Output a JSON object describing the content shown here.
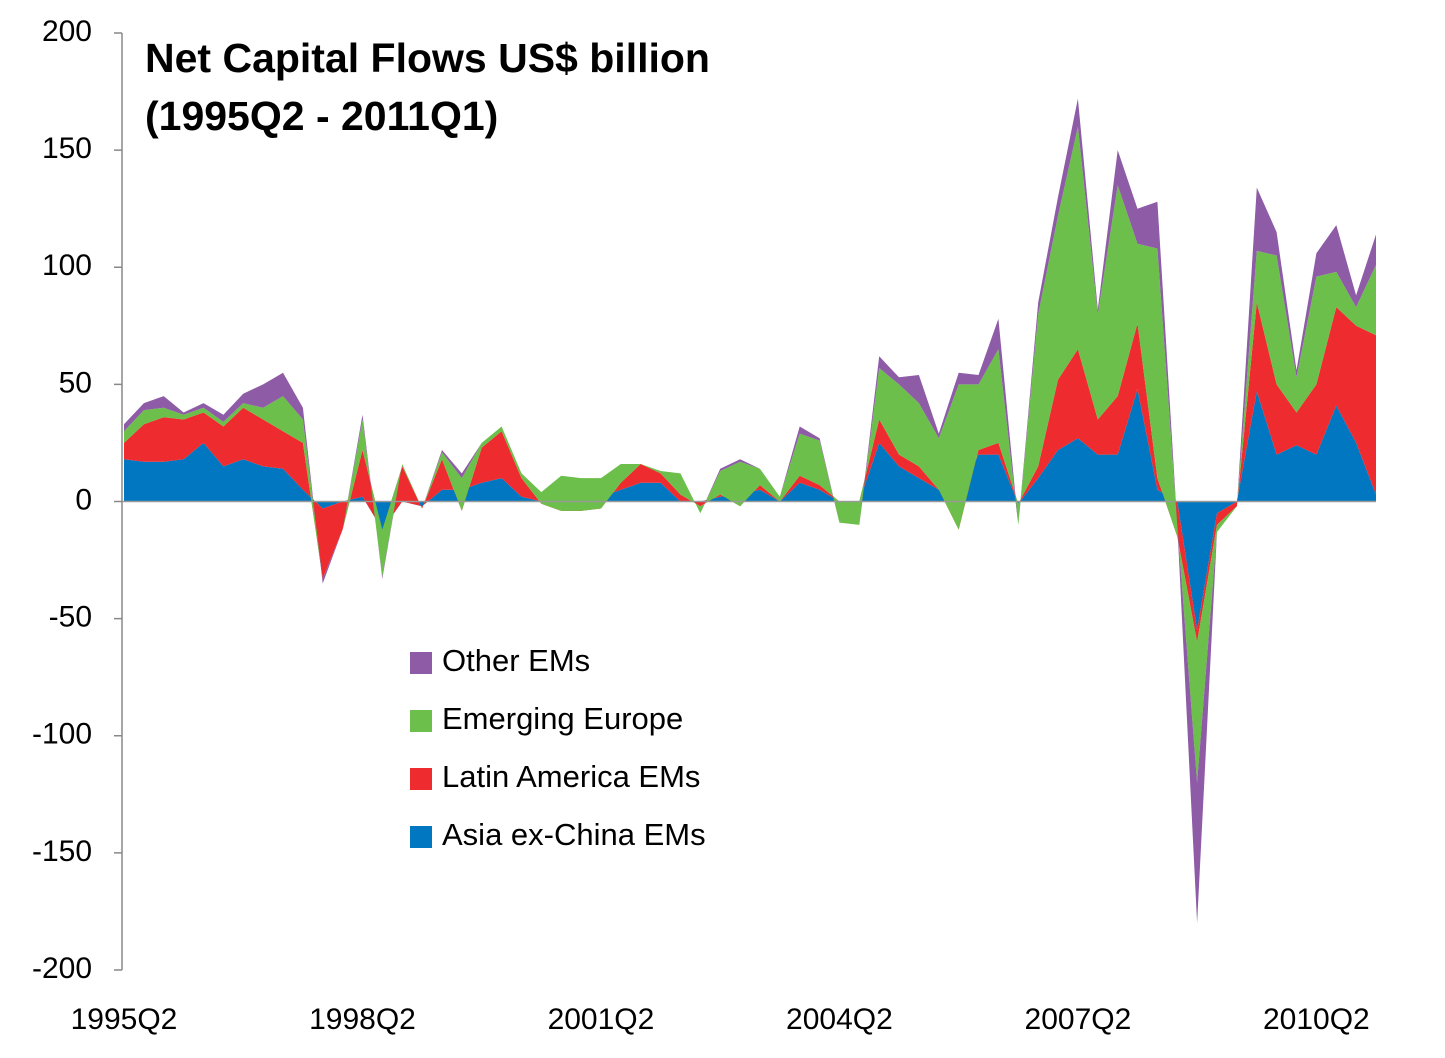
{
  "chart_data": {
    "type": "stacked-area",
    "title": "Net Capital Flows US$ billion",
    "subtitle": "(1995Q2 - 2011Q1)",
    "categories": [
      "1995Q2",
      null,
      null,
      null,
      null,
      null,
      null,
      null,
      null,
      null,
      null,
      null,
      "1998Q2",
      null,
      null,
      null,
      null,
      null,
      null,
      null,
      null,
      null,
      null,
      null,
      "2001Q2",
      null,
      null,
      null,
      null,
      null,
      null,
      null,
      null,
      null,
      null,
      null,
      "2004Q2",
      null,
      null,
      null,
      null,
      null,
      null,
      null,
      null,
      null,
      null,
      null,
      "2007Q2",
      null,
      null,
      null,
      null,
      null,
      null,
      null,
      null,
      null,
      null,
      null,
      "2010Q2",
      null,
      null,
      null
    ],
    "series": [
      {
        "name": "Asia ex-China EMs",
        "color": "#0077c0",
        "values": [
          18,
          17,
          17,
          18,
          25,
          15,
          18,
          15,
          14,
          5,
          -3,
          0,
          2,
          -12,
          0,
          -2,
          5,
          5,
          8,
          10,
          2,
          0,
          1,
          8,
          2,
          5,
          8,
          8,
          0,
          0,
          2,
          3,
          5,
          0,
          8,
          5,
          0,
          0,
          25,
          15,
          10,
          5,
          3,
          20,
          20,
          -1,
          10,
          22,
          27,
          20,
          20,
          48,
          5,
          0,
          -55,
          -5,
          0,
          47,
          20,
          24,
          20,
          41,
          25,
          3
        ]
      },
      {
        "name": "Latin America EMs",
        "color": "#ee2b2f",
        "values": [
          7,
          16,
          19,
          17,
          13,
          17,
          22,
          20,
          16,
          20,
          -30,
          -12,
          20,
          0,
          15,
          -1,
          13,
          -9,
          15,
          20,
          8,
          -1,
          -5,
          -12,
          -5,
          3,
          8,
          4,
          3,
          -2,
          1,
          -5,
          2,
          0,
          3,
          2,
          0,
          0,
          10,
          5,
          5,
          0,
          -15,
          2,
          5,
          0,
          5,
          30,
          38,
          15,
          25,
          28,
          5,
          -15,
          -5,
          -5,
          -2,
          38,
          30,
          14,
          30,
          42,
          50,
          68
        ]
      },
      {
        "name": "Emerging Europe",
        "color": "#6cbf4a",
        "values": [
          5,
          6,
          4,
          2,
          2,
          2,
          2,
          5,
          15,
          10,
          0,
          0,
          13,
          -20,
          1,
          0,
          3,
          14,
          2,
          2,
          2,
          5,
          15,
          14,
          13,
          8,
          0,
          1,
          9,
          -3,
          10,
          19,
          7,
          2,
          18,
          19,
          -9,
          -10,
          22,
          30,
          27,
          22,
          62,
          28,
          40,
          -9,
          65,
          70,
          95,
          45,
          90,
          34,
          98,
          5,
          -60,
          -3,
          0,
          22,
          55,
          15,
          46,
          15,
          8,
          30
        ]
      },
      {
        "name": "Other EMs",
        "color": "#8e5ba6",
        "values": [
          3,
          3,
          5,
          1,
          2,
          3,
          4,
          10,
          10,
          5,
          -2,
          0,
          2,
          -1,
          0,
          0,
          1,
          2,
          0,
          0,
          0,
          0,
          0,
          0,
          0,
          0,
          0,
          0,
          0,
          0,
          1,
          1,
          0,
          0,
          3,
          1,
          0,
          0,
          5,
          3,
          12,
          2,
          5,
          4,
          13,
          0,
          5,
          8,
          12,
          2,
          15,
          15,
          20,
          0,
          -60,
          0,
          0,
          27,
          10,
          3,
          10,
          20,
          5,
          13
        ]
      }
    ],
    "ylim": [
      -200,
      200
    ],
    "yticks": [
      -200,
      -150,
      -100,
      -50,
      0,
      50,
      100,
      150,
      200
    ]
  }
}
